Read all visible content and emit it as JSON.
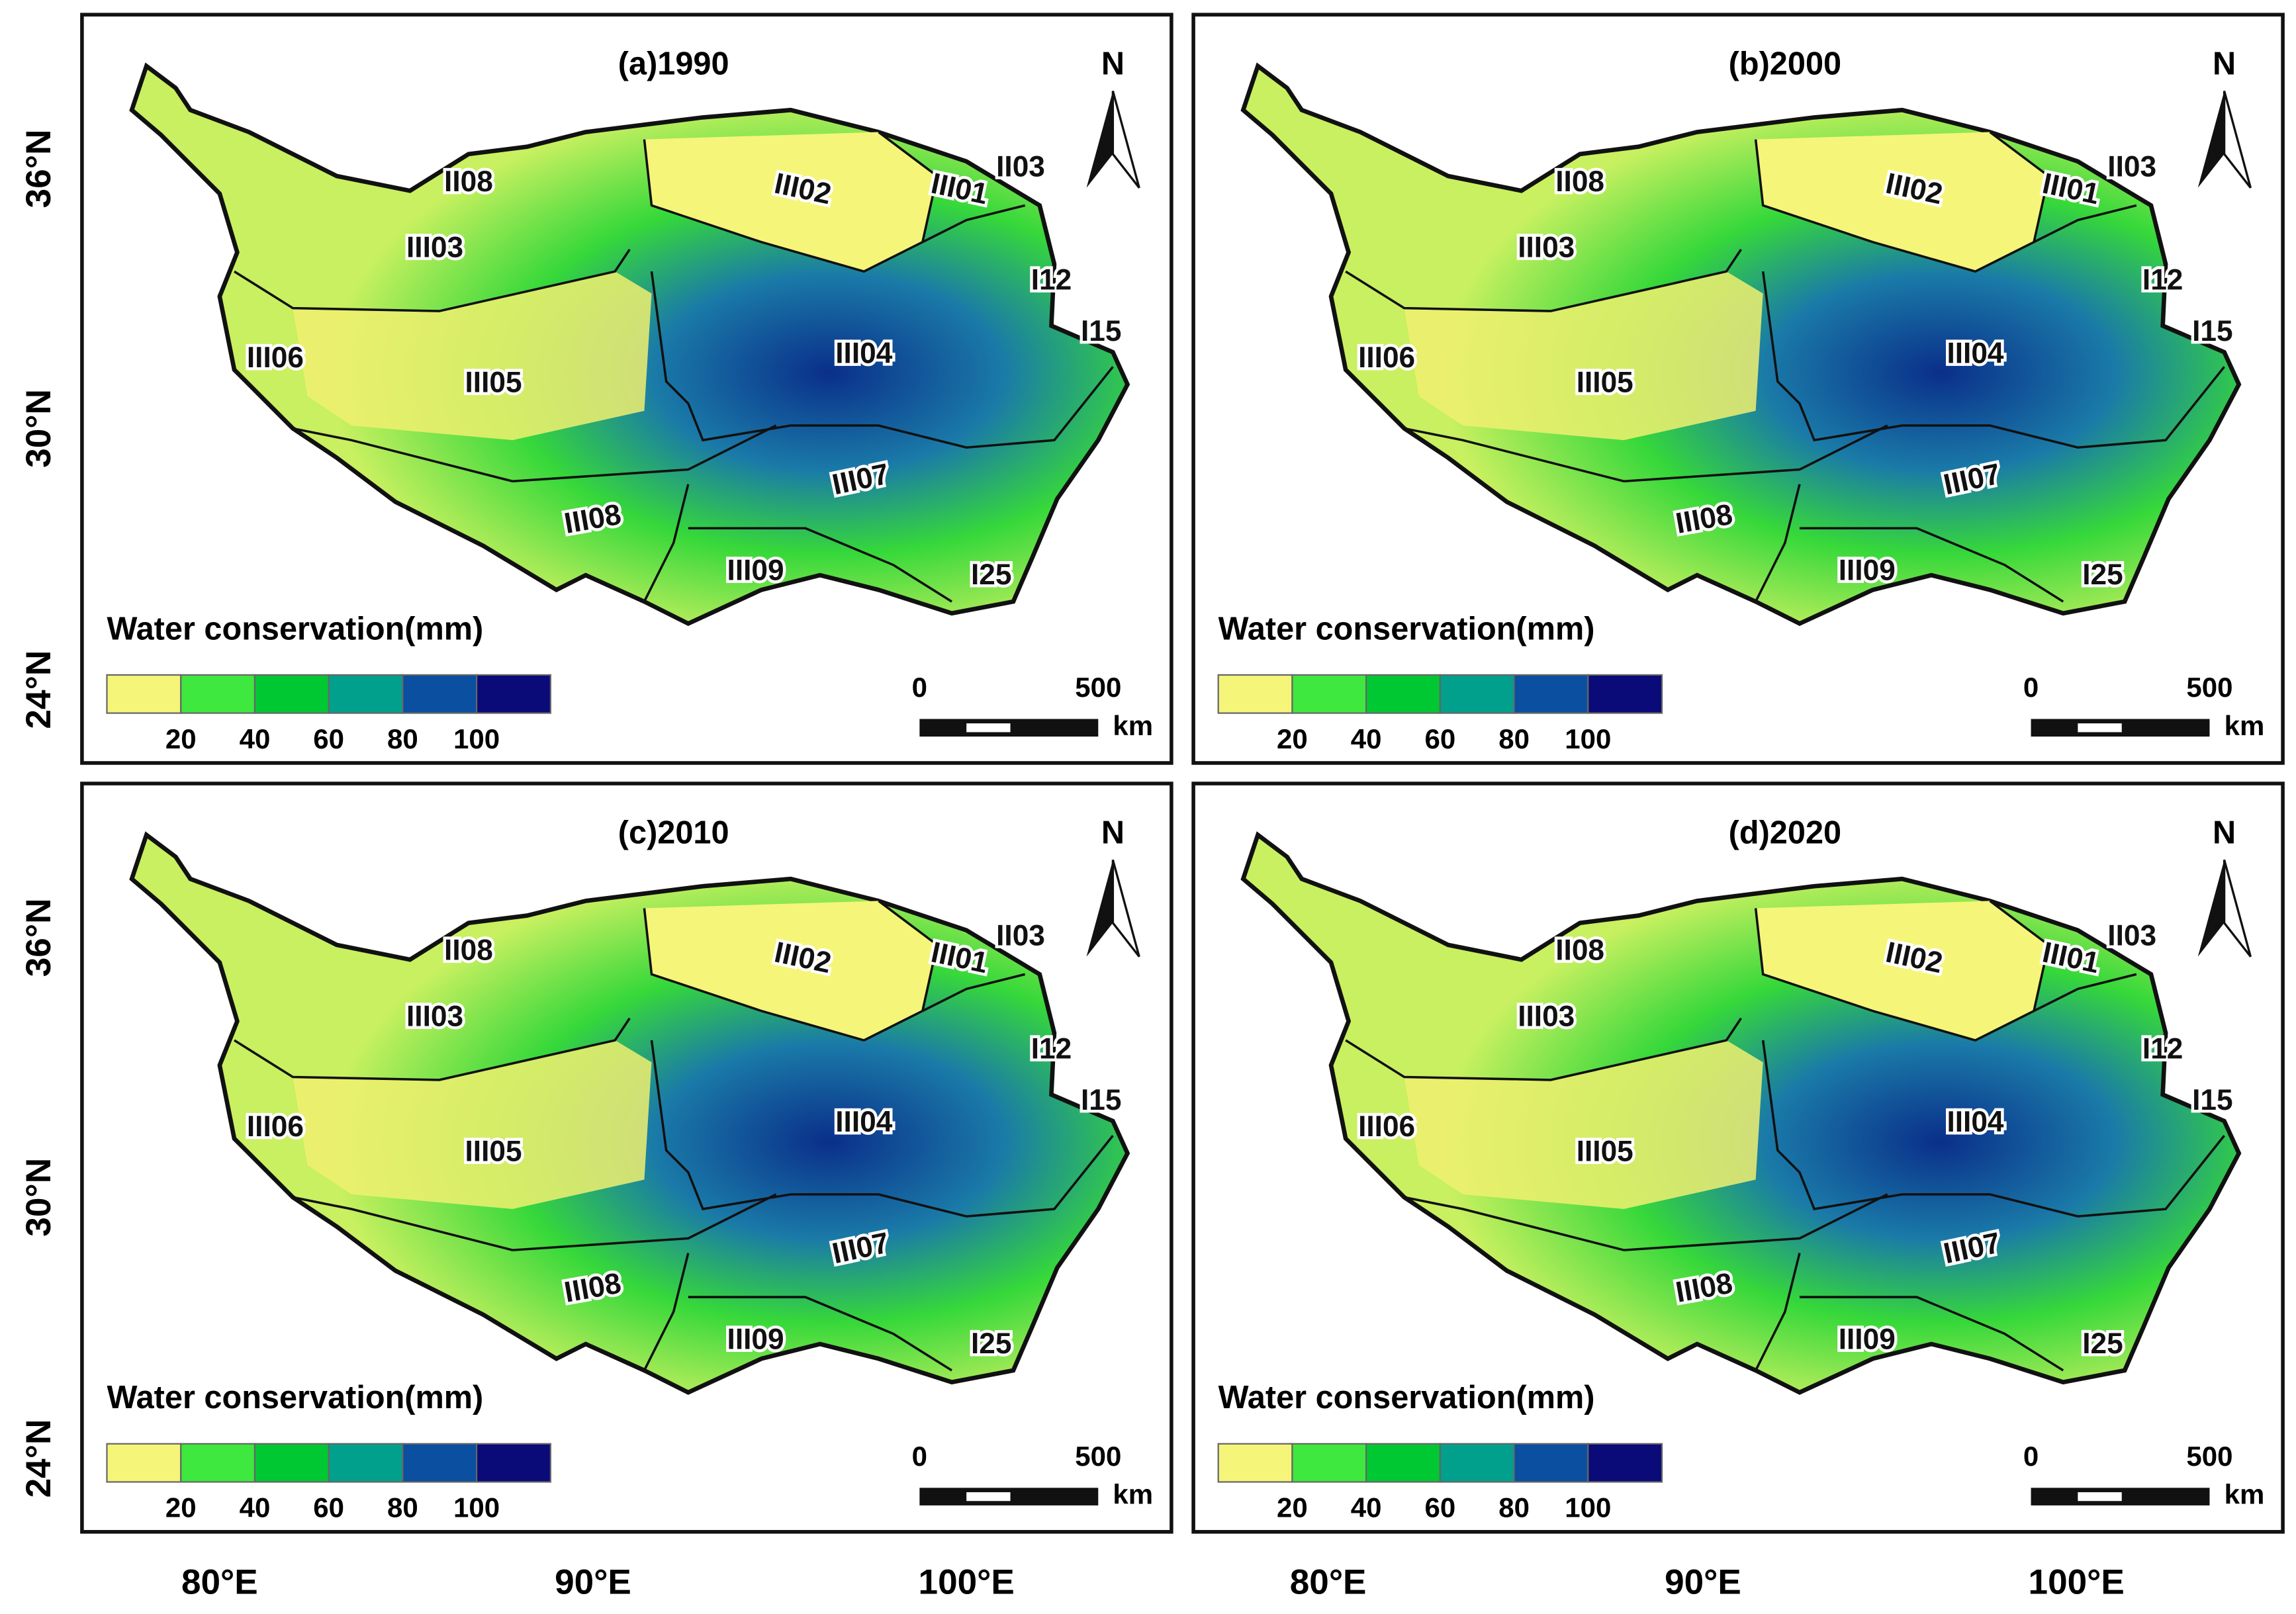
{
  "y_axis_labels": [
    "36°N",
    "30°N",
    "24°N"
  ],
  "x_axis_labels": [
    "80°E",
    "90°E",
    "100°E"
  ],
  "panels": [
    {
      "title": "(a)1990"
    },
    {
      "title": "(b)2000"
    },
    {
      "title": "(c)2010"
    },
    {
      "title": "(d)2020"
    }
  ],
  "regions": [
    "II08",
    "III02",
    "III01",
    "II03",
    "III03",
    "I12",
    "I15",
    "III06",
    "III05",
    "III04",
    "III07",
    "III08",
    "III09",
    "I25"
  ],
  "legend": {
    "title": "Water conservation(mm)",
    "ticks": [
      20,
      40,
      60,
      80,
      100
    ],
    "colors": [
      "#f5f57a",
      "#3ee83e",
      "#00c832",
      "#00a08c",
      "#0a4fa0",
      "#0a0a78"
    ]
  },
  "scale_bar": {
    "labels": [
      "0",
      "500",
      "km"
    ]
  },
  "north": "N"
}
